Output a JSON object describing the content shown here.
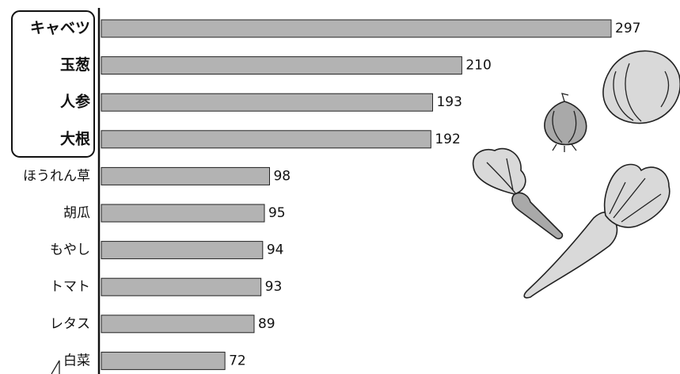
{
  "chart_data": {
    "type": "bar",
    "orientation": "horizontal",
    "categories": [
      "キャベツ",
      "玉葱",
      "人参",
      "大根",
      "ほうれん草",
      "胡瓜",
      "もやし",
      "トマト",
      "レタス",
      "白菜"
    ],
    "values": [
      297,
      210,
      193,
      192,
      98,
      95,
      94,
      93,
      89,
      72
    ],
    "color": "#b3b3b3"
  }
}
